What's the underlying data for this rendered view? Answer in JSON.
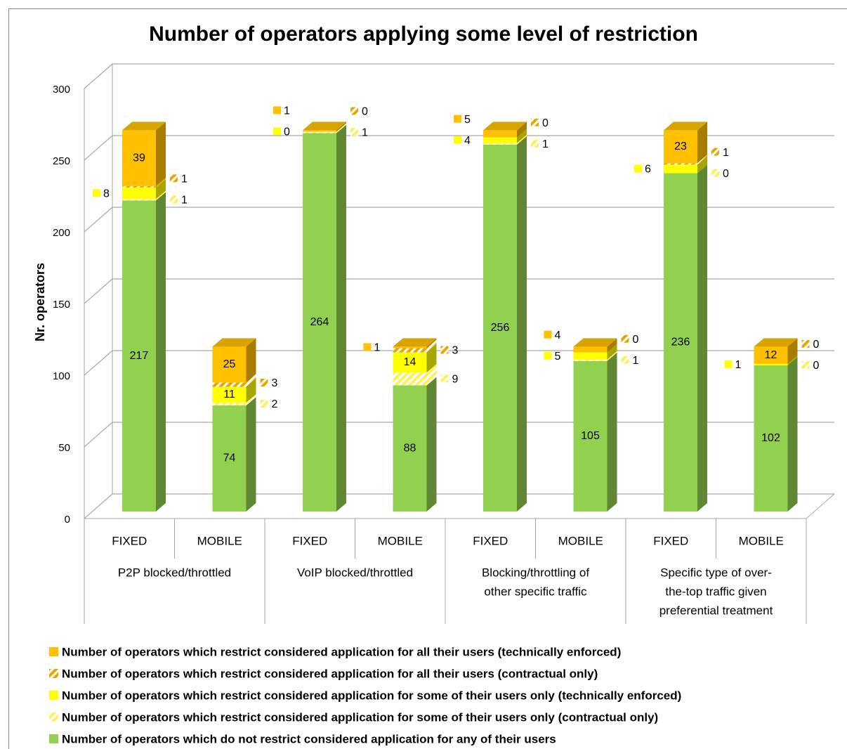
{
  "chart_data": {
    "type": "bar3d_stacked",
    "title": "Number of operators applying some level of restriction",
    "y_label": "Nr. operators",
    "categories": [
      "FIXED",
      "MOBILE",
      "FIXED",
      "MOBILE",
      "FIXED",
      "MOBILE",
      "FIXED",
      "MOBILE"
    ],
    "group_labels": [
      [
        "P2P blocked/throttled"
      ],
      [
        "VoIP blocked/throttled"
      ],
      [
        "Blocking/throttling of",
        "other specific traffic"
      ],
      [
        "Specific type of over-",
        "the-top traffic given",
        "preferential treatment"
      ]
    ],
    "ylim": [
      0,
      300
    ],
    "yticks": [
      0,
      50,
      100,
      150,
      200,
      250,
      300
    ],
    "grid": true,
    "series": [
      {
        "name": "Number of operators which do not restrict considered application for any of their users",
        "color": "#92d050",
        "values": [
          217,
          74,
          264,
          88,
          256,
          105,
          236,
          102
        ]
      },
      {
        "name": "Number of operators which restrict considered application for some of their users only (contractual only)",
        "color": "#ffef5a",
        "pattern": "hatch",
        "values": [
          1,
          2,
          1,
          9,
          1,
          1,
          0,
          0
        ]
      },
      {
        "name": "Number of operators which restrict considered application for some of their users only (technically enforced)",
        "color": "#ffff00",
        "values": [
          8,
          11,
          0,
          14,
          4,
          5,
          6,
          1
        ]
      },
      {
        "name": "Number of operators which restrict considered application for all their users (contractual only)",
        "color": "#e6a800",
        "pattern": "hatch",
        "values": [
          1,
          3,
          0,
          3,
          0,
          0,
          1,
          0
        ]
      },
      {
        "name": "Number of operators which restrict considered application for all their users (technically enforced)",
        "color": "#ffc000",
        "values": [
          39,
          25,
          1,
          1,
          5,
          4,
          23,
          12
        ]
      }
    ]
  }
}
